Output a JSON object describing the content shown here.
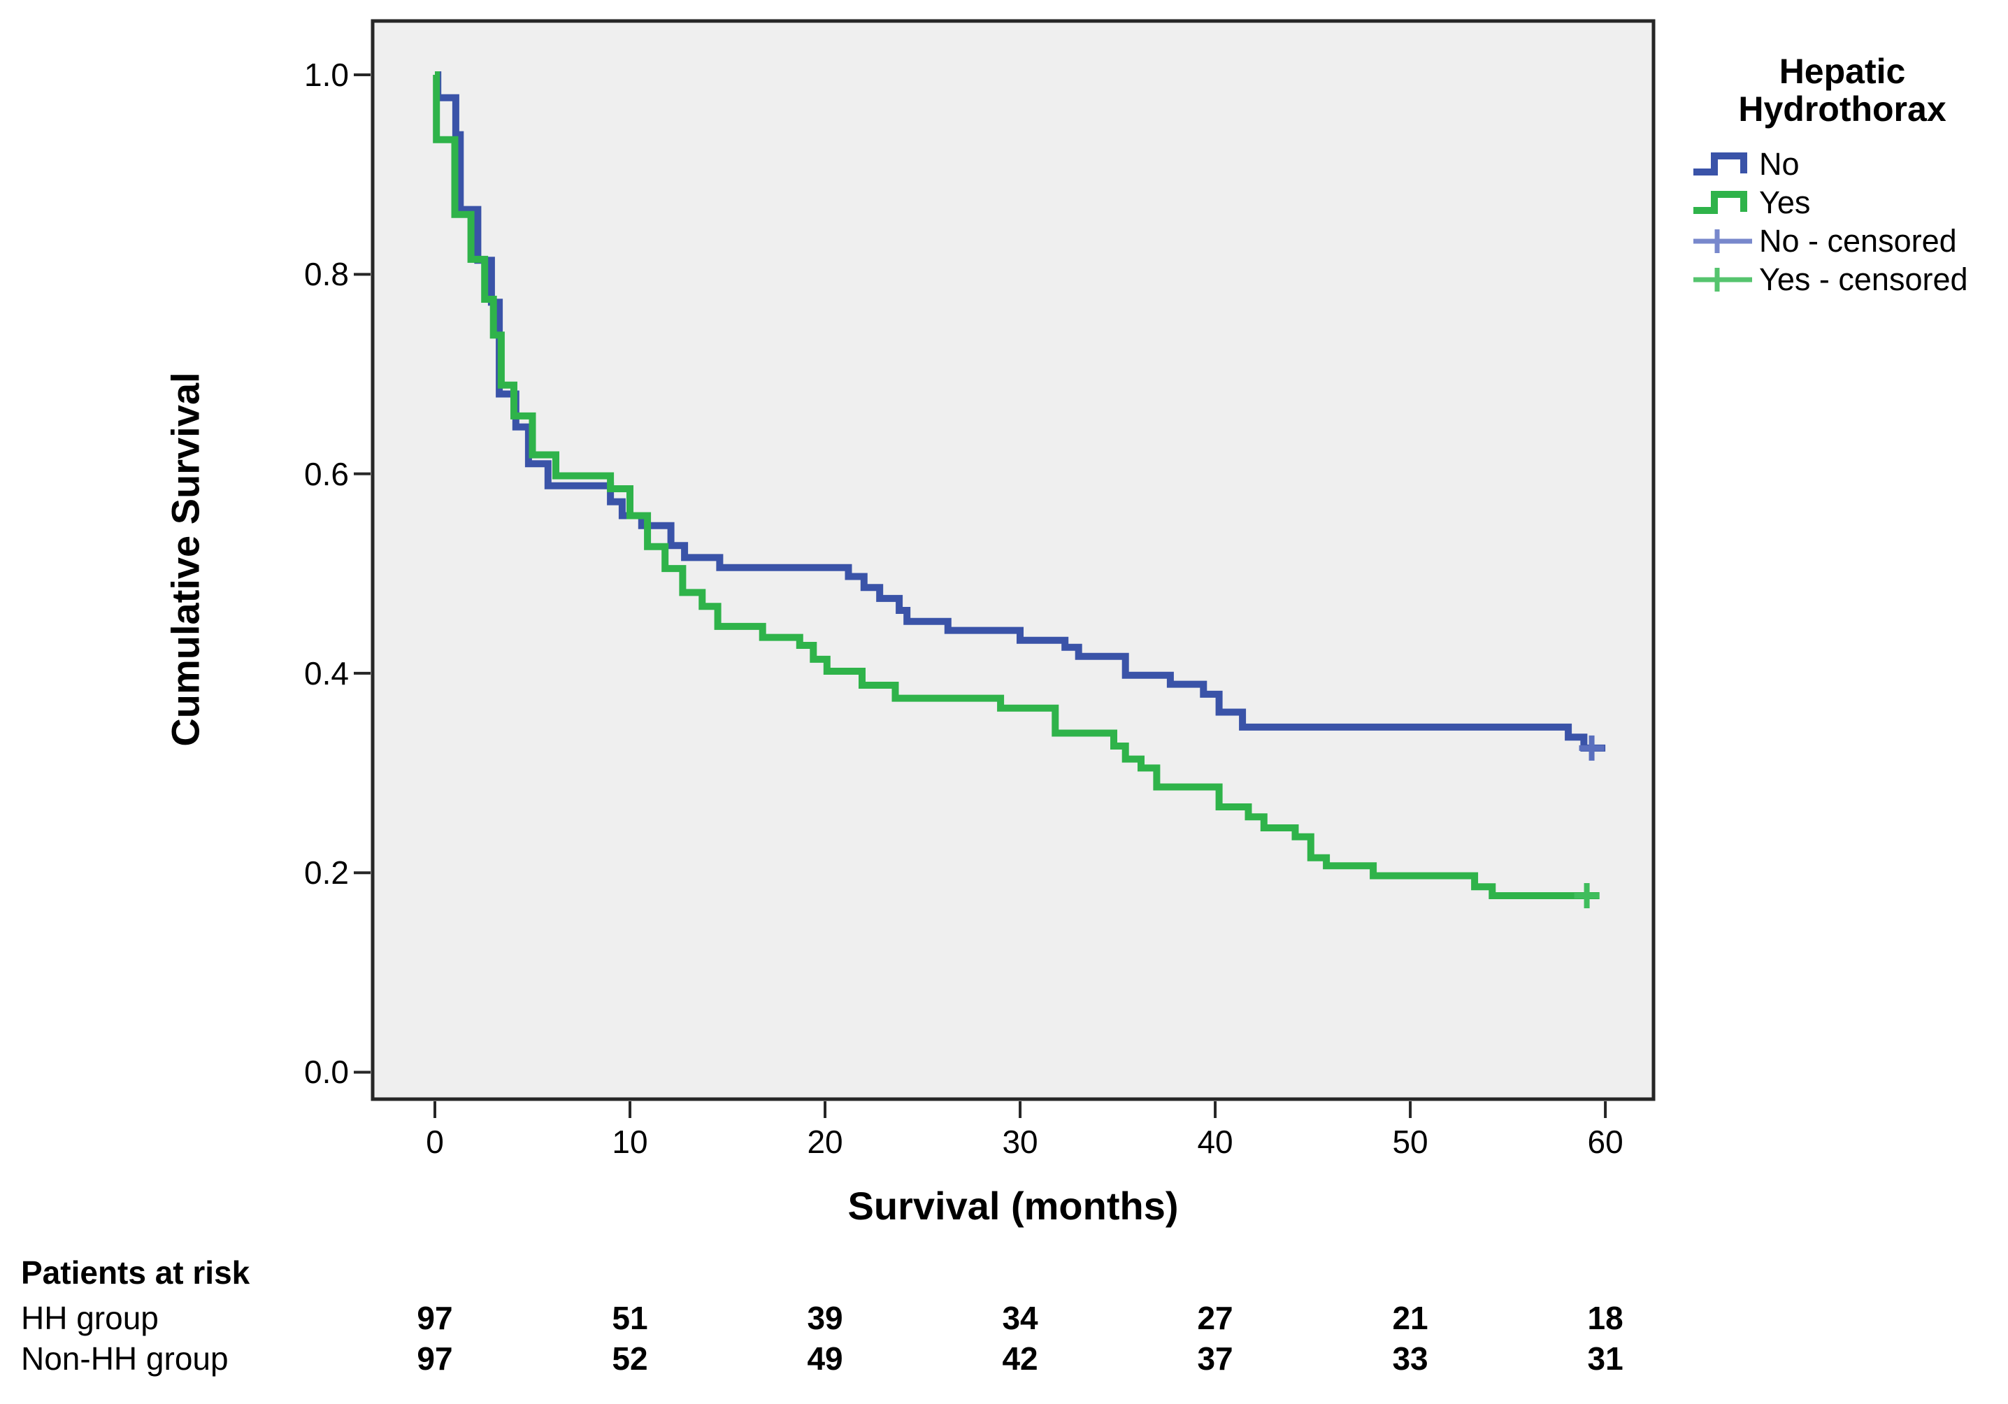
{
  "chart_data": {
    "type": "line",
    "subtype": "kaplan-meier-step",
    "title": "",
    "xlabel": "Survival (months)",
    "ylabel": "Cumulative Survival",
    "xlim": [
      -3.19,
      62.47
    ],
    "ylim": [
      -0.027,
      1.054
    ],
    "grid": false,
    "x_ticks": {
      "values": [
        0,
        10,
        20,
        30,
        40,
        50,
        60
      ],
      "labels": [
        "0",
        "10",
        "20",
        "30",
        "40",
        "50",
        "60"
      ]
    },
    "y_ticks": {
      "values": [
        0.0,
        0.2,
        0.4,
        0.6,
        0.8,
        1.0
      ],
      "labels": [
        "0.0",
        "0.2",
        "0.4",
        "0.6",
        "0.8",
        "1.0"
      ]
    },
    "legend": {
      "title": "Hepatic Hydrothorax",
      "position": "top-right-outside",
      "entries": [
        {
          "label": "No",
          "color": "#3a53a8",
          "symbol": "step"
        },
        {
          "label": "Yes",
          "color": "#2fb34a",
          "symbol": "step"
        },
        {
          "label": "No - censored",
          "color": "#7888cc",
          "symbol": "censor"
        },
        {
          "label": "Yes - censored",
          "color": "#55c46e",
          "symbol": "censor"
        }
      ]
    },
    "series": [
      {
        "name": "No",
        "color": "#3a53a8",
        "censor_color": "#5a6fbe",
        "line_end": 60.0,
        "censored": [
          [
            59.3,
            0.325
          ]
        ],
        "steps": [
          [
            0,
            1.0
          ],
          [
            0.15,
            0.977
          ],
          [
            1.07,
            0.94
          ],
          [
            1.3,
            0.865
          ],
          [
            2.2,
            0.814
          ],
          [
            2.9,
            0.772
          ],
          [
            3.3,
            0.68
          ],
          [
            4.15,
            0.647
          ],
          [
            4.8,
            0.61
          ],
          [
            5.8,
            0.588
          ],
          [
            9.0,
            0.572
          ],
          [
            9.6,
            0.558
          ],
          [
            10.6,
            0.548
          ],
          [
            12.1,
            0.528
          ],
          [
            12.8,
            0.516
          ],
          [
            14.6,
            0.506
          ],
          [
            21.2,
            0.497
          ],
          [
            22.0,
            0.486
          ],
          [
            22.8,
            0.475
          ],
          [
            23.8,
            0.463
          ],
          [
            24.2,
            0.452
          ],
          [
            26.3,
            0.443
          ],
          [
            30.0,
            0.433
          ],
          [
            32.3,
            0.426
          ],
          [
            33.0,
            0.417
          ],
          [
            35.4,
            0.398
          ],
          [
            37.7,
            0.389
          ],
          [
            39.4,
            0.379
          ],
          [
            40.2,
            0.361
          ],
          [
            41.4,
            0.346
          ],
          [
            58.1,
            0.336
          ],
          [
            58.9,
            0.325
          ]
        ]
      },
      {
        "name": "Yes",
        "color": "#2fb34a",
        "censor_color": "#3fbd5c",
        "line_end": 59.7,
        "censored": [
          [
            59.05,
            0.177
          ]
        ],
        "steps": [
          [
            0,
            1.0
          ],
          [
            0.08,
            0.935
          ],
          [
            1.02,
            0.86
          ],
          [
            1.85,
            0.815
          ],
          [
            2.55,
            0.775
          ],
          [
            3.0,
            0.739
          ],
          [
            3.4,
            0.689
          ],
          [
            4.05,
            0.658
          ],
          [
            5.0,
            0.619
          ],
          [
            6.2,
            0.598
          ],
          [
            9.0,
            0.585
          ],
          [
            10.0,
            0.558
          ],
          [
            10.9,
            0.527
          ],
          [
            11.8,
            0.505
          ],
          [
            12.7,
            0.481
          ],
          [
            13.7,
            0.467
          ],
          [
            14.5,
            0.447
          ],
          [
            16.8,
            0.436
          ],
          [
            18.7,
            0.428
          ],
          [
            19.4,
            0.414
          ],
          [
            20.1,
            0.402
          ],
          [
            21.9,
            0.388
          ],
          [
            23.6,
            0.375
          ],
          [
            29.0,
            0.365
          ],
          [
            31.8,
            0.34
          ],
          [
            34.8,
            0.327
          ],
          [
            35.4,
            0.314
          ],
          [
            36.2,
            0.305
          ],
          [
            37.0,
            0.286
          ],
          [
            40.2,
            0.266
          ],
          [
            41.7,
            0.256
          ],
          [
            42.5,
            0.245
          ],
          [
            44.1,
            0.236
          ],
          [
            44.9,
            0.215
          ],
          [
            45.7,
            0.207
          ],
          [
            48.1,
            0.197
          ],
          [
            53.3,
            0.186
          ],
          [
            54.2,
            0.177
          ]
        ]
      }
    ]
  },
  "risk_table": {
    "heading": "Patients at risk",
    "time_points": [
      0,
      10,
      20,
      30,
      40,
      50,
      60
    ],
    "rows": [
      {
        "label": "HH group",
        "counts": [
          "97",
          "51",
          "39",
          "34",
          "27",
          "21",
          "18"
        ]
      },
      {
        "label": "Non-HH group",
        "counts": [
          "97",
          "52",
          "49",
          "42",
          "37",
          "33",
          "31"
        ]
      }
    ]
  },
  "colors": {
    "page_bg": "#ffffff",
    "plot_bg": "#efefef",
    "frame": "#262626",
    "text": "#000000"
  }
}
